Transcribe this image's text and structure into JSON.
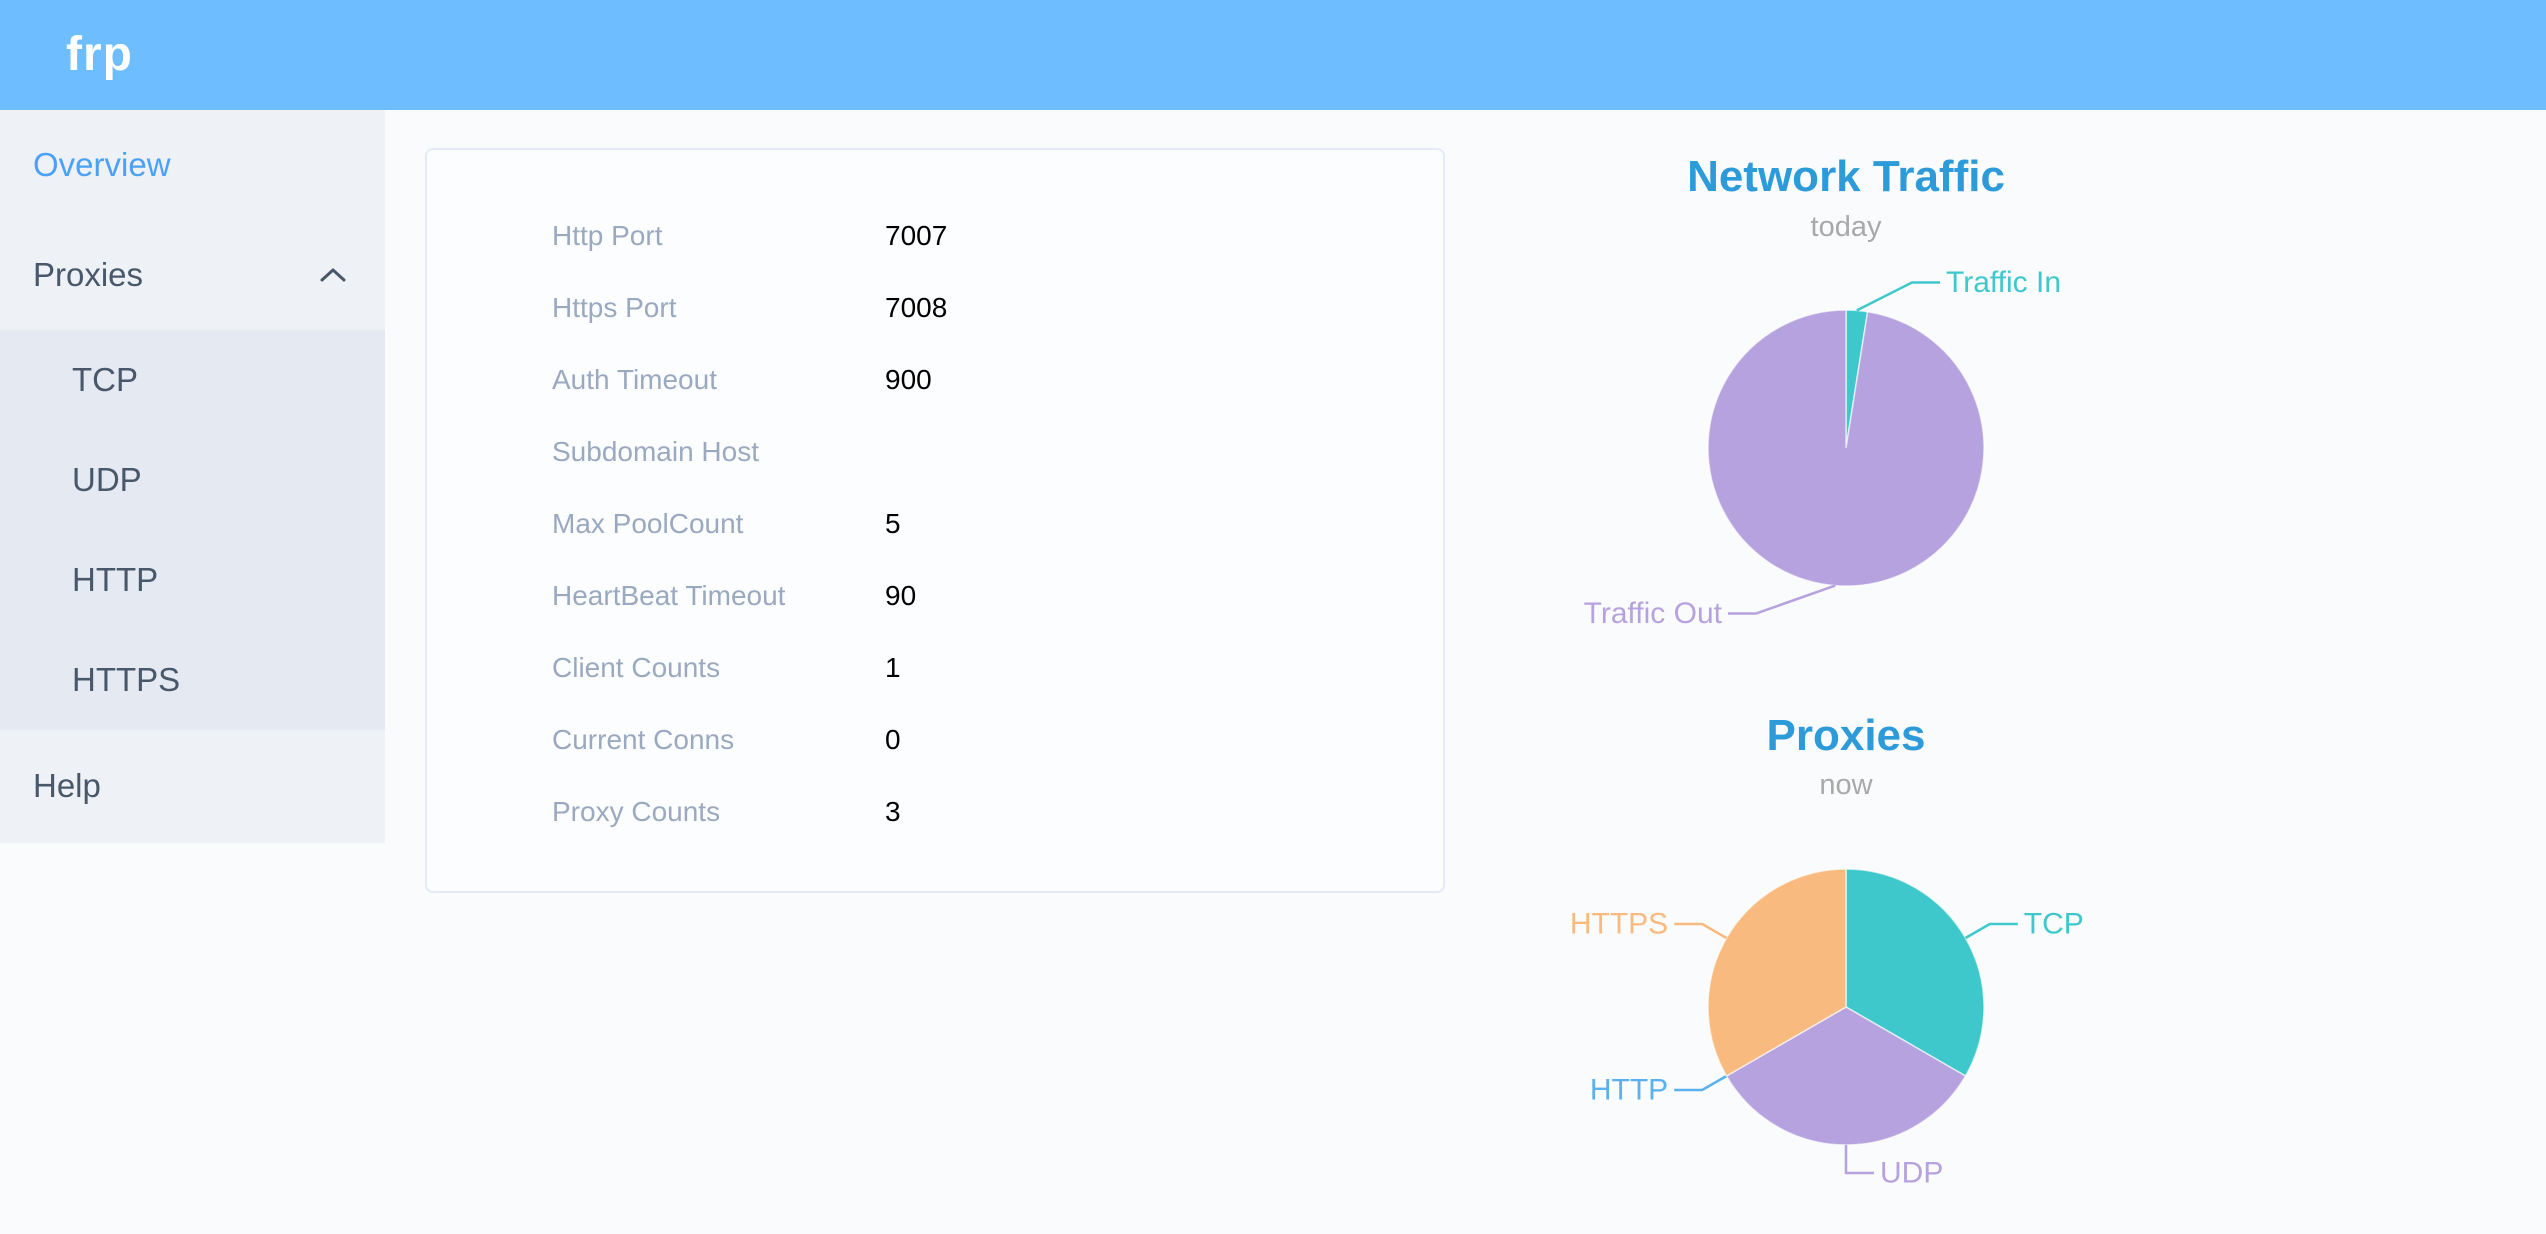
{
  "app": {
    "logo_text": "frp"
  },
  "colors": {
    "header_background": "#6ebdff",
    "sidebar_background": "#eef1f6",
    "submenu_background": "#e5e9f2",
    "menu_text": "#48576a",
    "menu_active": "#4aa1f9",
    "chart_title": "#2d9bd9",
    "teal": "#3fc8cc",
    "purple": "#b6a2de",
    "blue": "#5ab1ef",
    "orange": "#f9ba7f"
  },
  "sidebar": {
    "items": [
      {
        "label": "Overview",
        "active": true
      },
      {
        "label": "Proxies",
        "expanded": true
      },
      {
        "label": "Help",
        "active": false
      }
    ],
    "submenu": [
      "TCP",
      "UDP",
      "HTTP",
      "HTTPS"
    ]
  },
  "overview_card": {
    "rows": [
      {
        "label": "Http Port",
        "value": "7007"
      },
      {
        "label": "Https Port",
        "value": "7008"
      },
      {
        "label": "Auth Timeout",
        "value": "900"
      },
      {
        "label": "Subdomain Host",
        "value": ""
      },
      {
        "label": "Max PoolCount",
        "value": "5"
      },
      {
        "label": "HeartBeat Timeout",
        "value": "90"
      },
      {
        "label": "Client Counts",
        "value": "1"
      },
      {
        "label": "Current Conns",
        "value": "0"
      },
      {
        "label": "Proxy Counts",
        "value": "3"
      }
    ]
  },
  "chart_data": [
    {
      "type": "pie",
      "title": "Network Traffic",
      "subtitle": "today",
      "legend_position": "callout-labels",
      "series": [
        {
          "name": "Traffic In",
          "value_pct": 2.5,
          "color": "#3fc8cc"
        },
        {
          "name": "Traffic Out",
          "value_pct": 97.5,
          "color": "#b6a2de"
        }
      ]
    },
    {
      "type": "pie",
      "title": "Proxies",
      "subtitle": "now",
      "legend_position": "callout-labels",
      "series": [
        {
          "name": "TCP",
          "value": 1,
          "color": "#3fc8cc"
        },
        {
          "name": "UDP",
          "value": 1,
          "color": "#b6a2de"
        },
        {
          "name": "HTTP",
          "value": 0,
          "color": "#5ab1ef"
        },
        {
          "name": "HTTPS",
          "value": 1,
          "color": "#f9ba7f"
        }
      ]
    }
  ]
}
